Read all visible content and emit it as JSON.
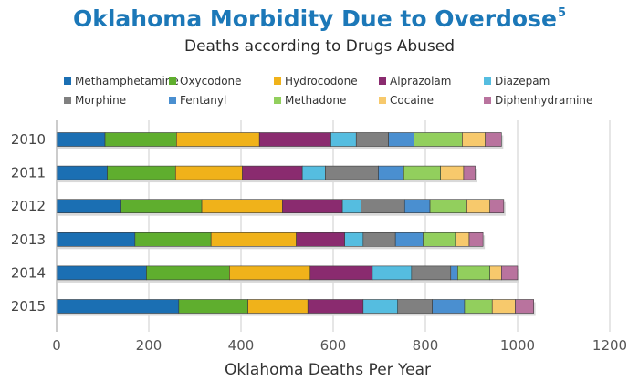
{
  "header": {
    "title": "Oklahoma Morbidity Due to Overdose",
    "title_sup": "5",
    "subtitle": "Deaths according to Drugs Abused"
  },
  "chart_data": {
    "type": "bar",
    "orientation": "horizontal",
    "stacked": true,
    "title": "Oklahoma Morbidity Due to Overdose",
    "subtitle": "Deaths according to Drugs Abused",
    "xlabel": "Oklahoma Deaths Per Year",
    "ylabel": "",
    "xlim": [
      0,
      1200
    ],
    "xticks": [
      0,
      200,
      400,
      600,
      800,
      1000,
      1200
    ],
    "grid": "vertical",
    "legend_position": "top",
    "categories": [
      "2010",
      "2011",
      "2012",
      "2013",
      "2014",
      "2015"
    ],
    "series": [
      {
        "name": "Methamphetamine",
        "color": "#1b6fb3",
        "values": [
          105,
          110,
          140,
          170,
          195,
          265
        ]
      },
      {
        "name": "Oxycodone",
        "color": "#5fae2e",
        "values": [
          155,
          148,
          175,
          165,
          180,
          150
        ]
      },
      {
        "name": "Hydrocodone",
        "color": "#f0b21a",
        "values": [
          180,
          145,
          175,
          185,
          175,
          130
        ]
      },
      {
        "name": "Alprazolam",
        "color": "#8a2b6f",
        "values": [
          155,
          130,
          130,
          105,
          135,
          120
        ]
      },
      {
        "name": "Diazepam",
        "color": "#55bde0",
        "values": [
          55,
          50,
          40,
          40,
          85,
          75
        ]
      },
      {
        "name": "Morphine",
        "color": "#808080",
        "values": [
          70,
          115,
          95,
          70,
          85,
          75
        ]
      },
      {
        "name": "Fentanyl",
        "color": "#4a8fd0",
        "values": [
          55,
          55,
          55,
          60,
          15,
          70
        ]
      },
      {
        "name": "Methadone",
        "color": "#92cf5d",
        "values": [
          105,
          80,
          80,
          70,
          70,
          60
        ]
      },
      {
        "name": "Cocaine",
        "color": "#f7c96c",
        "values": [
          50,
          50,
          50,
          30,
          25,
          50
        ]
      },
      {
        "name": "Diphenhydramine",
        "color": "#b9739e",
        "values": [
          35,
          25,
          30,
          30,
          35,
          40
        ]
      }
    ]
  }
}
